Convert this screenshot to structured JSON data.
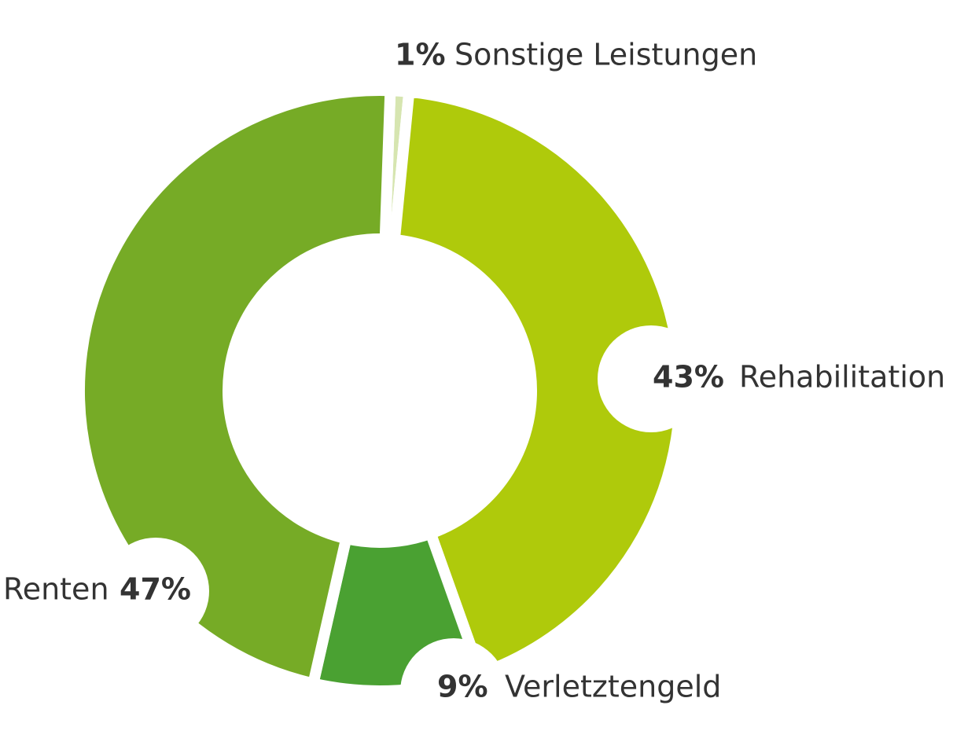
{
  "chart_data": {
    "type": "donut",
    "categories": [
      "Sonstige Leistungen",
      "Rehabilitation",
      "Verletztengeld",
      "Renten"
    ],
    "values": [
      1,
      43,
      9,
      47
    ],
    "value_labels": [
      "1%",
      "43%",
      "9%",
      "47%"
    ],
    "colors": [
      "#d6e5b0",
      "#afca0b",
      "#4aa132",
      "#76ab26"
    ]
  }
}
